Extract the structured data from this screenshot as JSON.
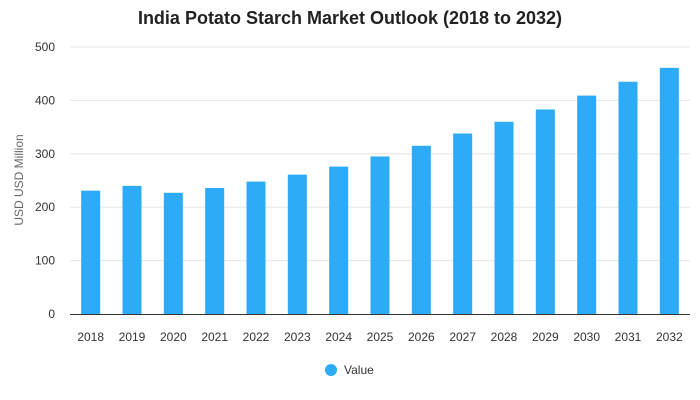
{
  "chart_data": {
    "type": "bar",
    "title": "India Potato Starch Market Outlook (2018 to 2032)",
    "ylabel": "USD USD Million",
    "xlabel": "",
    "categories": [
      "2018",
      "2019",
      "2020",
      "2021",
      "2022",
      "2023",
      "2024",
      "2025",
      "2026",
      "2027",
      "2028",
      "2029",
      "2030",
      "2031",
      "2032"
    ],
    "series": [
      {
        "name": "Value",
        "color": "#2eabf7",
        "values": [
          231,
          240,
          227,
          236,
          248,
          261,
          276,
          295,
          315,
          338,
          360,
          383,
          409,
          435,
          461
        ]
      }
    ],
    "ylim": [
      0,
      500
    ],
    "yticks": [
      0,
      100,
      200,
      300,
      400,
      500
    ],
    "grid": true,
    "legend": "bottom-center"
  }
}
